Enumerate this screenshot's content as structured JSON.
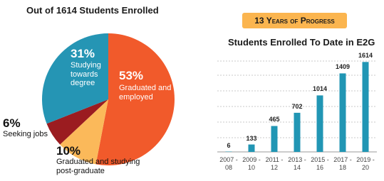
{
  "chart_data": [
    {
      "type": "pie",
      "title": "Out of 1614 Students Enrolled",
      "categories": [
        "Graduated and employed",
        "Graduated and studying post-graduate",
        "Seeking jobs",
        "Studying towards degree"
      ],
      "values": [
        53,
        10,
        6,
        31
      ],
      "value_labels": [
        "53%",
        "10%",
        "6%",
        "31%"
      ],
      "colors": [
        "#f15a2b",
        "#fbb95a",
        "#9b1c20",
        "#2595b4"
      ]
    },
    {
      "type": "bar",
      "badge": "13 Years of Progress",
      "title": "Students Enrolled To Date in E2G",
      "categories": [
        "2007 - 08",
        "2009 - 10",
        "2011 - 12",
        "2013 - 14",
        "2015 - 16",
        "2017 - 18",
        "2019 - 20"
      ],
      "values": [
        6,
        133,
        465,
        702,
        1014,
        1409,
        1614
      ],
      "color": "#2196b4",
      "ylim": [
        0,
        2000
      ]
    }
  ]
}
